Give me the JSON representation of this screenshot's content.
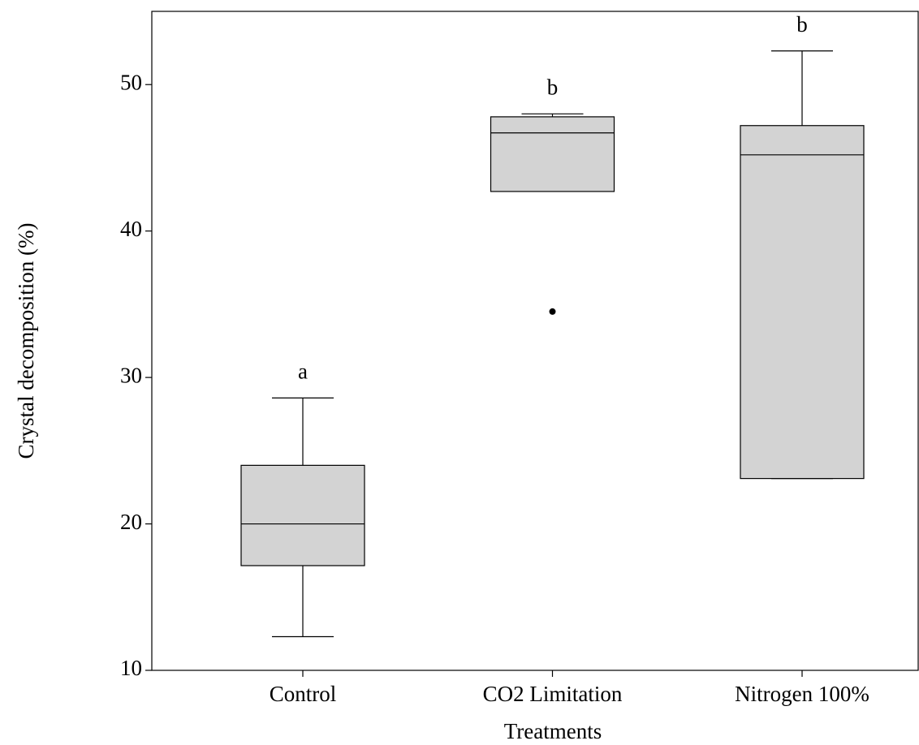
{
  "chart_data": {
    "type": "box",
    "x_label": "Treatments",
    "y_label": "Crystal decomposition (%)",
    "categories": [
      "Control",
      "CO2 Limitation",
      "Nitrogen 100%"
    ],
    "boxes": [
      {
        "min": 12.3,
        "q1": 17.15,
        "median": 20.0,
        "q3": 24.0,
        "max": 28.6,
        "outliers": []
      },
      {
        "min": 42.7,
        "q1": 42.7,
        "median": 46.7,
        "q3": 47.8,
        "max": 48.0,
        "outliers": [
          34.5
        ]
      },
      {
        "min": 23.1,
        "q1": 23.1,
        "median": 45.2,
        "q3": 47.2,
        "max": 52.3,
        "outliers": []
      }
    ],
    "annotations": [
      "a",
      "b",
      "b"
    ],
    "color": "#d3d3d3",
    "ylim": [
      10,
      55
    ],
    "yticks": [
      10,
      20,
      30,
      40,
      50
    ]
  }
}
